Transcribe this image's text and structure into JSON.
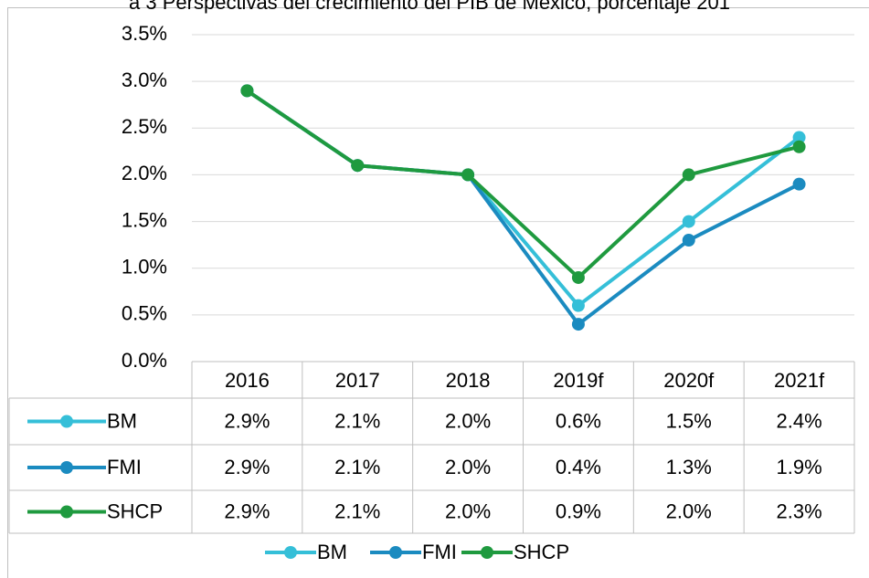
{
  "chart_data": {
    "type": "line",
    "title": "a 3 Perspectivas del crecimiento del PIB de México, porcentaje 201",
    "categories": [
      "2016",
      "2017",
      "2018",
      "2019f",
      "2020f",
      "2021f"
    ],
    "series": [
      {
        "name": "BM",
        "color": "#35bfd8",
        "values": [
          2.9,
          2.1,
          2.0,
          0.6,
          1.5,
          2.4
        ],
        "value_labels": [
          "2.9%",
          "2.1%",
          "2.0%",
          "0.6%",
          "1.5%",
          "2.4%"
        ]
      },
      {
        "name": "FMI",
        "color": "#1b8bc0",
        "values": [
          2.9,
          2.1,
          2.0,
          0.4,
          1.3,
          1.9
        ],
        "value_labels": [
          "2.9%",
          "2.1%",
          "2.0%",
          "0.4%",
          "1.3%",
          "1.9%"
        ]
      },
      {
        "name": "SHCP",
        "color": "#1f9a3f",
        "values": [
          2.9,
          2.1,
          2.0,
          0.9,
          2.0,
          2.3
        ],
        "value_labels": [
          "2.9%",
          "2.1%",
          "2.0%",
          "0.9%",
          "2.0%",
          "2.3%"
        ]
      }
    ],
    "ylim": [
      0,
      3.5
    ],
    "yticks": [
      {
        "value": 0,
        "label": "0.0%"
      },
      {
        "value": 0.5,
        "label": "0.5%"
      },
      {
        "value": 1.0,
        "label": "1.0%"
      },
      {
        "value": 1.5,
        "label": "1.5%"
      },
      {
        "value": 2.0,
        "label": "2.0%"
      },
      {
        "value": 2.5,
        "label": "2.5%"
      },
      {
        "value": 3.0,
        "label": "3.0%"
      },
      {
        "value": 3.5,
        "label": "3.5%"
      }
    ],
    "grid": true,
    "legend": "bottom"
  }
}
